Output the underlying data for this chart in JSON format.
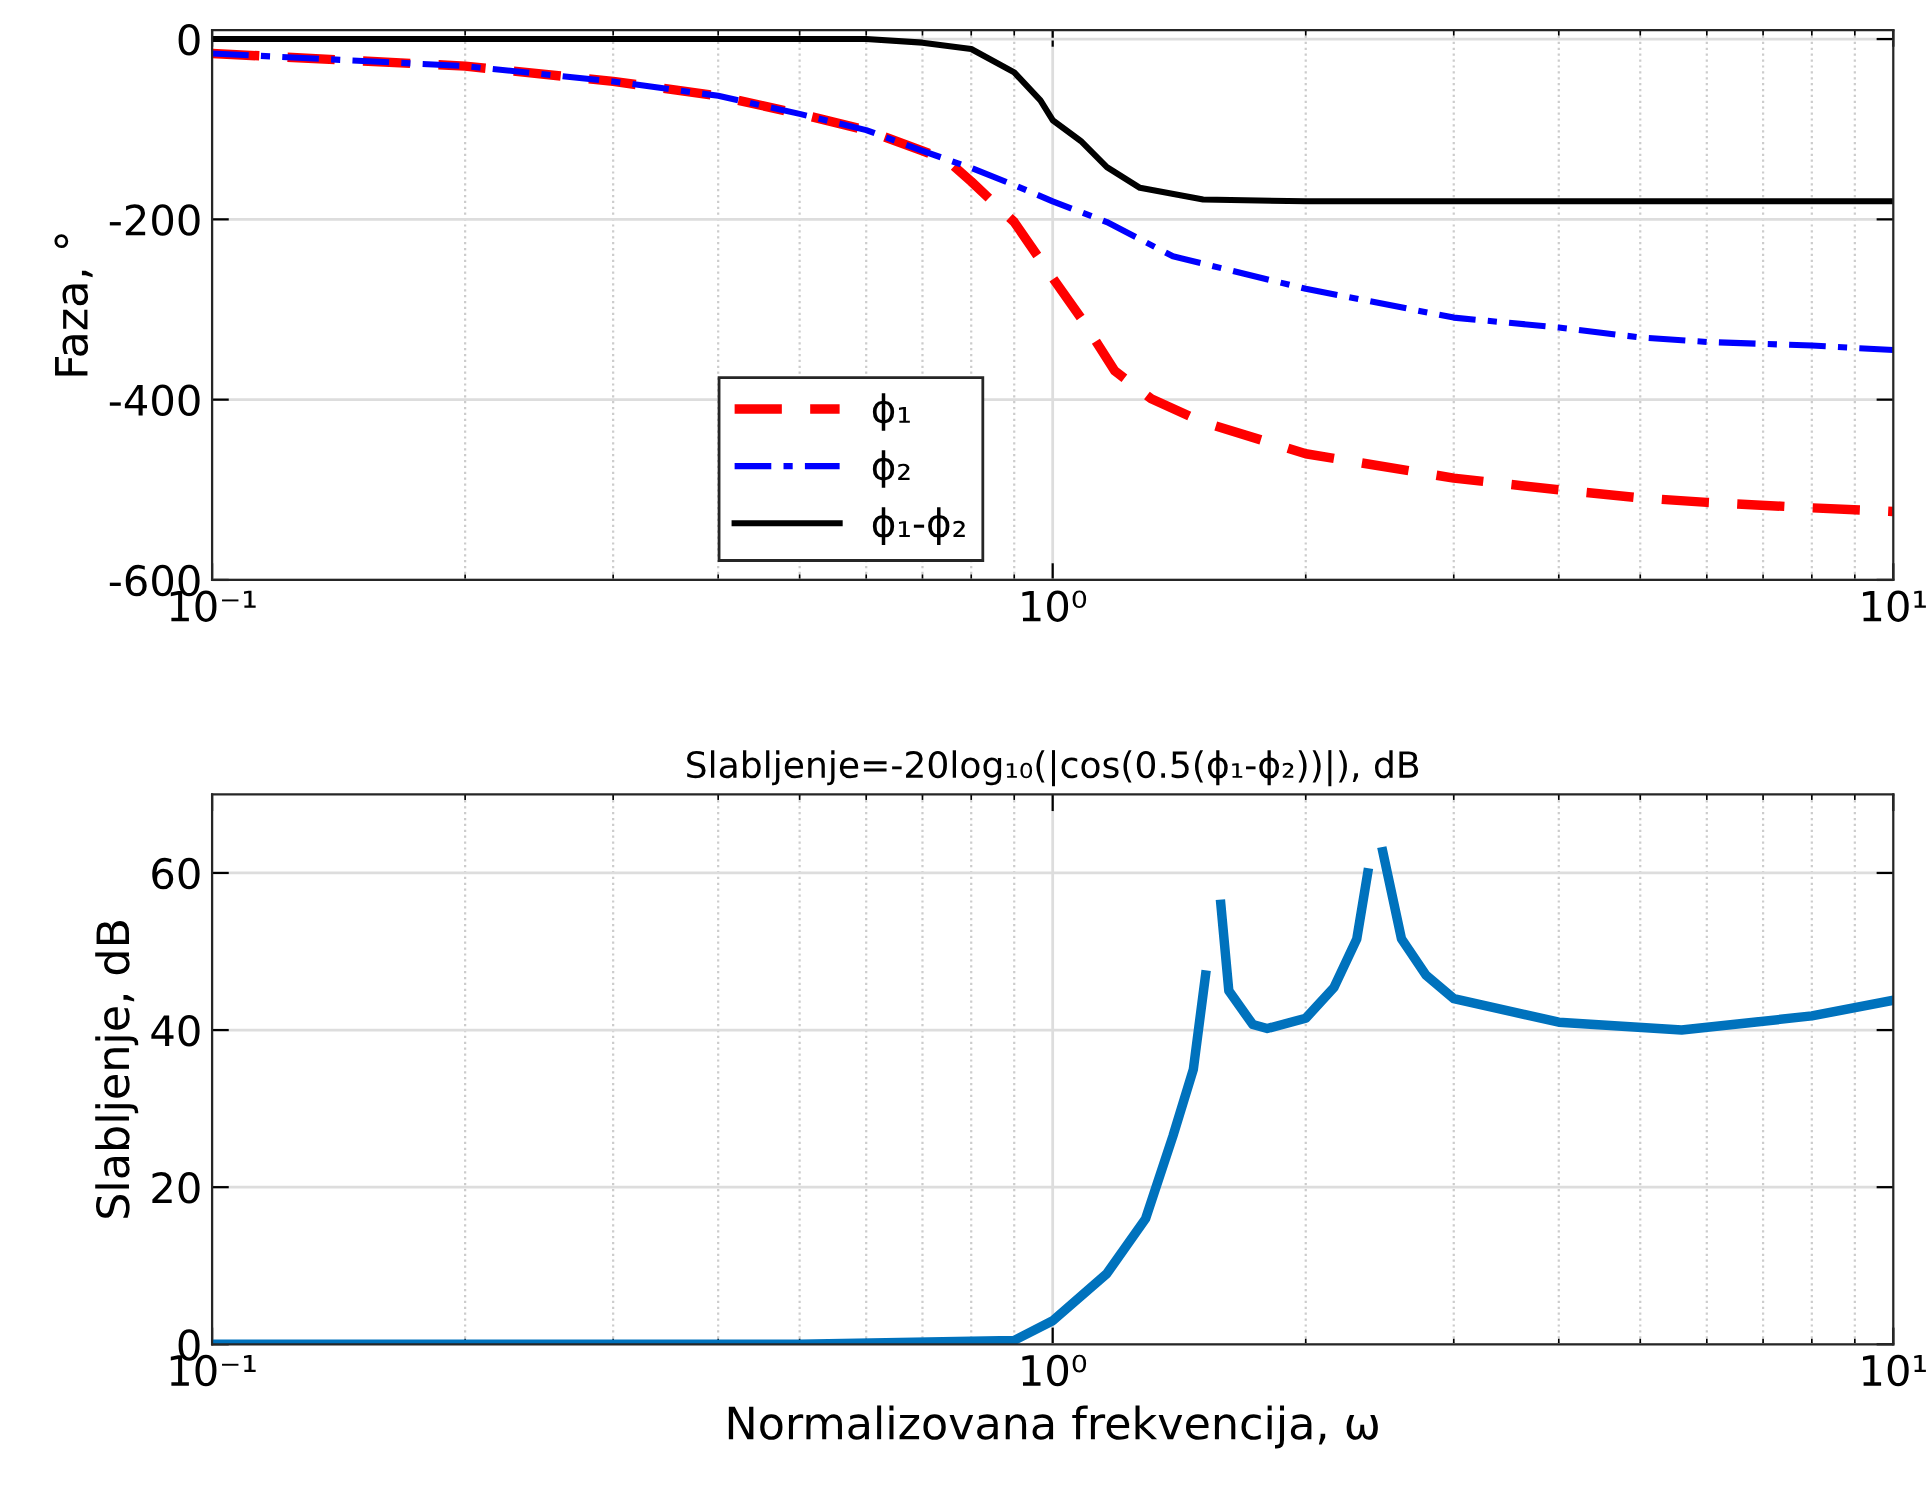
{
  "chart_data": [
    {
      "type": "line",
      "ylabel": "Faza, °",
      "log": "x",
      "xlim": [
        0.1,
        10
      ],
      "xticks": [
        {
          "value": 0.1,
          "label": "10⁻¹"
        },
        {
          "value": 1,
          "label": "10⁰"
        },
        {
          "value": 10,
          "label": "10¹"
        }
      ],
      "ylim": [
        -600,
        10
      ],
      "yticks": [
        -600,
        -400,
        -200,
        0
      ],
      "grid": true,
      "legend": "bottom",
      "series": [
        {
          "name": "ϕ₁",
          "color": "#ff0000",
          "line_style": "dashed",
          "x": [
            0.1,
            0.2,
            0.3,
            0.4,
            0.5,
            0.6,
            0.7,
            0.75,
            0.8,
            0.9,
            1.0,
            1.08,
            1.185,
            1.31,
            1.5,
            2,
            3,
            4,
            5,
            6,
            8,
            10
          ],
          "values": [
            -16,
            -30,
            -47,
            -63,
            -83,
            -101,
            -124,
            -135,
            -158,
            -203,
            -265,
            -309,
            -368,
            -399,
            -424,
            -460,
            -487,
            -500,
            -509,
            -514,
            -520,
            -524
          ]
        },
        {
          "name": "ϕ₂",
          "color": "#0000ff",
          "line_style": "dashdot",
          "x": [
            0.1,
            0.2,
            0.3,
            0.4,
            0.5,
            0.6,
            0.7,
            0.8,
            0.9,
            1.0,
            1.16,
            1.39,
            2,
            3,
            4,
            5,
            6,
            8,
            10
          ],
          "values": [
            -16,
            -30,
            -47,
            -63,
            -83,
            -101,
            -124,
            -143,
            -162,
            -180,
            -203,
            -241,
            -277,
            -309,
            -320,
            -331,
            -336,
            -340,
            -345
          ]
        },
        {
          "name": "ϕ₁-ϕ₂",
          "color": "#000000",
          "line_style": "solid",
          "x": [
            0.1,
            0.3,
            0.6,
            0.7,
            0.8,
            0.9,
            0.967,
            1.0,
            1.08,
            1.16,
            1.27,
            1.51,
            2,
            3,
            5,
            10
          ],
          "values": [
            0,
            0,
            0,
            -4,
            -11,
            -37,
            -68,
            -90,
            -113,
            -142,
            -165,
            -178,
            -180,
            -180,
            -180,
            -180
          ]
        }
      ]
    },
    {
      "type": "line",
      "title": "Slabljenje=-20log₁₀(|cos(0.5(ϕ₁-ϕ₂))|), dB",
      "xlabel": "Normalizovana frekvencija, ω",
      "ylabel": "Slabljenje, dB",
      "log": "x",
      "xlim": [
        0.1,
        10
      ],
      "xticks": [
        {
          "value": 0.1,
          "label": "10⁻¹"
        },
        {
          "value": 1,
          "label": "10⁰"
        },
        {
          "value": 10,
          "label": "10¹"
        }
      ],
      "ylim": [
        0,
        70
      ],
      "yticks": [
        0,
        20,
        40,
        60
      ],
      "grid": true,
      "series": [
        {
          "color": "#0072bd",
          "line_style": "solid",
          "x": [
            0.1,
            0.5,
            0.9,
            1.0,
            1.16,
            1.29,
            1.39,
            1.47,
            1.52,
            1.545,
            1.56,
            1.585,
            1.62,
            1.73,
            1.8,
            2,
            2.16,
            2.3,
            2.37,
            2.43,
            2.45,
            2.47,
            2.6,
            2.78,
            3,
            4,
            5.6,
            8,
            10
          ],
          "values": [
            0,
            0,
            0.5,
            3,
            9,
            16,
            26.5,
            35,
            47,
            null,
            null,
            56,
            45,
            40.7,
            40.2,
            41.5,
            45.4,
            51.6,
            60,
            null,
            null,
            62.7,
            51.6,
            47,
            44,
            41,
            40,
            41.8,
            43.8
          ]
        }
      ]
    }
  ]
}
